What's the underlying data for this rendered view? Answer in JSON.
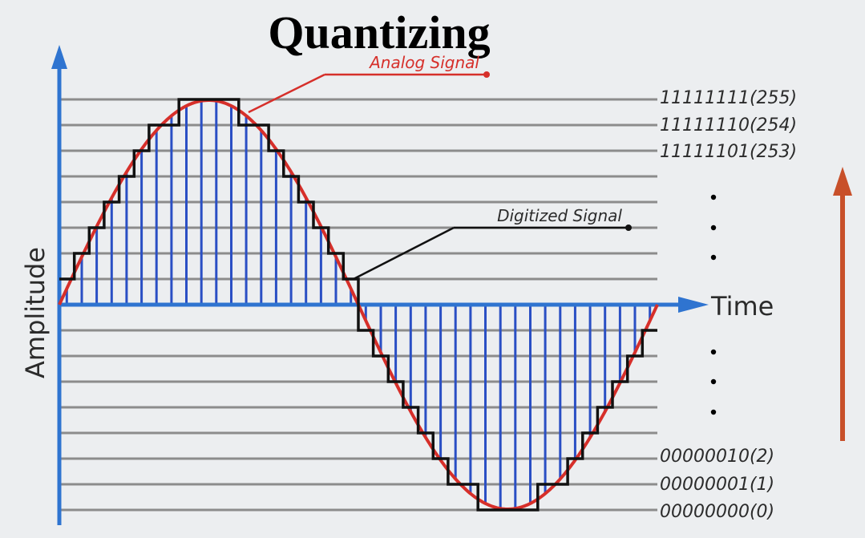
{
  "title": "Quantizing",
  "annotations": {
    "analog_signal": "Analog Signal",
    "digitized_signal": "Digitized Signal"
  },
  "axes": {
    "y_label": "Amplitude",
    "x_label": "Time"
  },
  "level_labels": {
    "top": [
      "11111111(255)",
      "11111110(254)",
      "11111101(253)"
    ],
    "bottom": [
      "00000010(2)",
      "00000001(1)",
      "00000000(0)"
    ]
  },
  "colors": {
    "analog_signal": "#d62f2a",
    "digitized_signal": "#111111",
    "sample_lines": "#2a4fc4",
    "axes": "#2f74d0",
    "grid": "#8c8c8c",
    "bit_arrow": "#c8502a",
    "background": "#eceef0"
  },
  "icons": {
    "y_axis_arrow": "arrow-up-icon",
    "x_axis_arrow": "arrow-right-icon",
    "bit_depth_arrow": "arrow-up-icon"
  },
  "signal": {
    "waveform": "one full sine cycle",
    "quantization_levels_drawn": 17,
    "samples_per_cycle": 40
  }
}
